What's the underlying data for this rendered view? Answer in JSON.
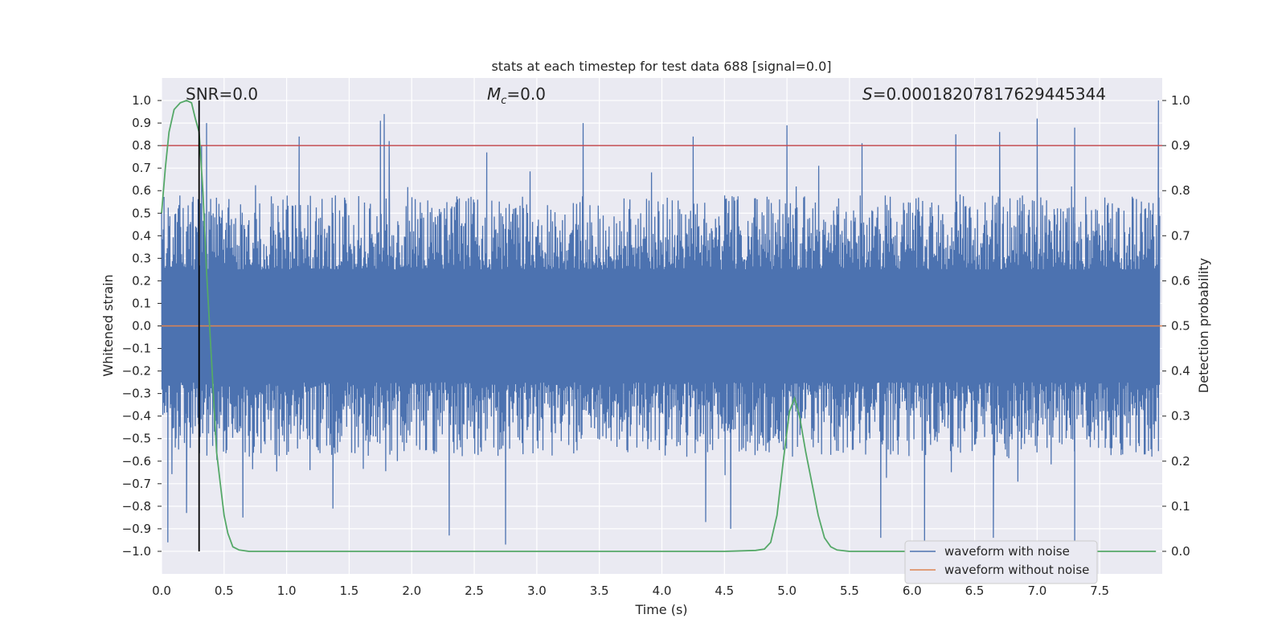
{
  "chart_data": {
    "type": "line",
    "title": "stats at each timestep for test data 688 [signal=0.0]",
    "xlabel": "Time (s)",
    "ylabel": "Whitened strain",
    "ylabel_right": "Detection probability",
    "xlim": [
      0.0,
      8.0
    ],
    "ylim": [
      -1.1,
      1.1
    ],
    "ylim_right": [
      -0.05,
      1.05
    ],
    "x_ticks": [
      "0.0",
      "0.5",
      "1.0",
      "1.5",
      "2.0",
      "2.5",
      "3.0",
      "3.5",
      "4.0",
      "4.5",
      "5.0",
      "5.5",
      "6.0",
      "6.5",
      "7.0",
      "7.5"
    ],
    "y_ticks": [
      "1.0",
      "0.9",
      "0.8",
      "0.7",
      "0.6",
      "0.5",
      "0.4",
      "0.3",
      "0.2",
      "0.1",
      "0.0",
      "-0.1",
      "-0.2",
      "-0.3",
      "-0.4",
      "-0.5",
      "-0.6",
      "-0.7",
      "-0.8",
      "-0.9",
      "-1.0"
    ],
    "y_right_ticks": [
      "1.0",
      "0.9",
      "0.8",
      "0.7",
      "0.6",
      "0.5",
      "0.4",
      "0.3",
      "0.2",
      "0.1",
      "0.0"
    ],
    "grid": true,
    "legend_placement": "lower-right",
    "annotations": {
      "snr": "SNR=0.0",
      "mc_symbol": "M",
      "mc_sub": "c",
      "mc_value": "=0.0",
      "s_symbol": "S",
      "s_value": "=0.0001820781762944534​4"
    },
    "series": [
      {
        "name": "waveform with noise",
        "color": "#4c72b0",
        "axis": "left",
        "envelope_note": "dense noise trace",
        "peaks_top": [
          [
            0.02,
            0.47
          ],
          [
            0.32,
            0.8
          ],
          [
            0.36,
            0.9
          ],
          [
            1.1,
            0.84
          ],
          [
            1.75,
            0.91
          ],
          [
            1.78,
            0.94
          ],
          [
            1.82,
            0.82
          ],
          [
            2.6,
            0.77
          ],
          [
            3.37,
            0.9
          ],
          [
            4.25,
            0.84
          ],
          [
            5.0,
            0.89
          ],
          [
            5.6,
            0.81
          ],
          [
            6.35,
            0.85
          ],
          [
            6.7,
            0.86
          ],
          [
            7.0,
            0.92
          ],
          [
            7.3,
            0.88
          ],
          [
            7.97,
            1.0
          ]
        ],
        "peaks_bottom": [
          [
            0.05,
            -0.96
          ],
          [
            0.2,
            -0.83
          ],
          [
            0.65,
            -0.85
          ],
          [
            1.37,
            -0.81
          ],
          [
            2.3,
            -0.93
          ],
          [
            2.75,
            -0.97
          ],
          [
            4.35,
            -0.87
          ],
          [
            4.55,
            -0.9
          ],
          [
            5.75,
            -0.94
          ],
          [
            6.1,
            -0.98
          ],
          [
            6.65,
            -0.94
          ],
          [
            7.3,
            -1.0
          ]
        ]
      },
      {
        "name": "waveform without noise",
        "color": "#dd8452",
        "axis": "left",
        "x": [
          0.0,
          8.0
        ],
        "y": [
          0.0,
          0.0
        ]
      },
      {
        "name": "detection probability",
        "color": "#55a868",
        "axis": "right",
        "x": [
          0.0,
          0.03,
          0.06,
          0.1,
          0.15,
          0.2,
          0.24,
          0.27,
          0.3,
          0.33,
          0.36,
          0.4,
          0.44,
          0.47,
          0.5,
          0.53,
          0.57,
          0.62,
          0.7,
          1.0,
          2.0,
          3.0,
          4.0,
          4.5,
          4.75,
          4.82,
          4.87,
          4.92,
          4.97,
          5.02,
          5.06,
          5.1,
          5.15,
          5.2,
          5.25,
          5.3,
          5.35,
          5.4,
          5.5,
          6.0,
          7.0,
          7.95
        ],
        "y": [
          0.75,
          0.85,
          0.93,
          0.98,
          0.995,
          1.0,
          0.995,
          0.96,
          0.93,
          0.8,
          0.62,
          0.42,
          0.22,
          0.15,
          0.08,
          0.04,
          0.01,
          0.003,
          0.0,
          0.0,
          0.0,
          0.0,
          0.0,
          0.0,
          0.002,
          0.005,
          0.02,
          0.08,
          0.2,
          0.31,
          0.34,
          0.3,
          0.22,
          0.15,
          0.08,
          0.03,
          0.01,
          0.003,
          0.0,
          0.0,
          0.0,
          0.0
        ]
      }
    ],
    "threshold_line": {
      "y_right": 0.9,
      "color": "#c44e52"
    },
    "vertical_line": {
      "x": 0.3,
      "color": "#000000"
    }
  },
  "legend": {
    "items": [
      {
        "label": "waveform with noise",
        "color": "#4c72b0"
      },
      {
        "label": "waveform without noise",
        "color": "#dd8452"
      }
    ]
  },
  "colors": {
    "plot_background": "#eaeaf2",
    "grid": "#ffffff"
  }
}
